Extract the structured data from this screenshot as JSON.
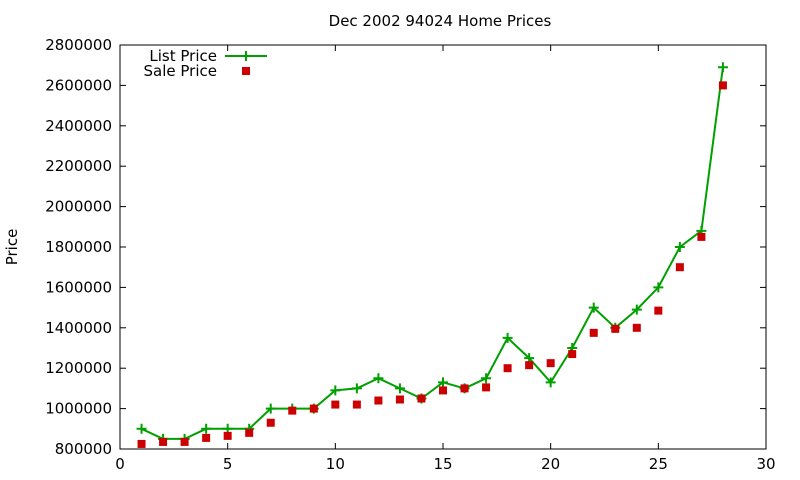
{
  "chart_data": {
    "type": "line",
    "title": "Dec 2002 94024 Home Prices",
    "xlabel": "",
    "ylabel": "Price",
    "xlim": [
      0,
      30
    ],
    "ylim": [
      800000,
      2800000
    ],
    "xticks": [
      0,
      5,
      10,
      15,
      20,
      25,
      30
    ],
    "yticks": [
      800000,
      1000000,
      1200000,
      1400000,
      1600000,
      1800000,
      2000000,
      2200000,
      2400000,
      2600000,
      2800000
    ],
    "grid": false,
    "legend_position": "top-left",
    "x": [
      1,
      2,
      3,
      4,
      5,
      6,
      7,
      8,
      9,
      10,
      11,
      12,
      13,
      14,
      15,
      16,
      17,
      18,
      19,
      20,
      21,
      22,
      23,
      24,
      25,
      26,
      27,
      28
    ],
    "series": [
      {
        "name": "List Price",
        "style": "line-plus",
        "color": "#00a000",
        "values": [
          900000,
          850000,
          850000,
          900000,
          900000,
          900000,
          1000000,
          1000000,
          1000000,
          1090000,
          1100000,
          1150000,
          1100000,
          1050000,
          1130000,
          1100000,
          1150000,
          1350000,
          1250000,
          1130000,
          1300000,
          1500000,
          1400000,
          1490000,
          1600000,
          1800000,
          1880000,
          2690000
        ]
      },
      {
        "name": "Sale Price",
        "style": "square-points",
        "color": "#cc0000",
        "values": [
          825000,
          835000,
          835000,
          855000,
          865000,
          880000,
          930000,
          990000,
          1000000,
          1020000,
          1020000,
          1040000,
          1045000,
          1050000,
          1090000,
          1100000,
          1105000,
          1200000,
          1215000,
          1225000,
          1270000,
          1375000,
          1395000,
          1400000,
          1485000,
          1700000,
          1850000,
          2600000
        ]
      }
    ]
  }
}
